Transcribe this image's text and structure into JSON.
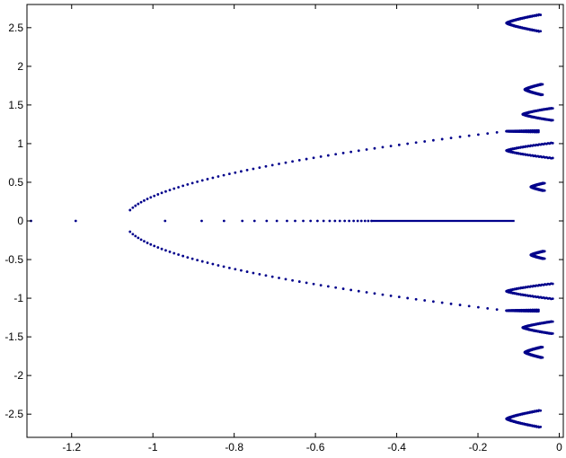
{
  "chart_data": {
    "type": "scatter",
    "title": "",
    "xlabel": "",
    "ylabel": "",
    "xlim": [
      -1.31,
      0.01
    ],
    "ylim": [
      -2.8,
      2.8
    ],
    "x_ticks": [
      {
        "value": -1.2,
        "label": "-1.2"
      },
      {
        "value": -1.0,
        "label": "-1"
      },
      {
        "value": -0.8,
        "label": "-0.8"
      },
      {
        "value": -0.6,
        "label": "-0.6"
      },
      {
        "value": -0.4,
        "label": "-0.4"
      },
      {
        "value": -0.2,
        "label": "-0.2"
      },
      {
        "value": 0,
        "label": "0"
      }
    ],
    "y_ticks": [
      {
        "value": 2.5,
        "label": "2.5"
      },
      {
        "value": 2.0,
        "label": "2"
      },
      {
        "value": 1.5,
        "label": "1.5"
      },
      {
        "value": 1.0,
        "label": "1"
      },
      {
        "value": 0.5,
        "label": "0.5"
      },
      {
        "value": 0,
        "label": "0"
      },
      {
        "value": -0.5,
        "label": "-0.5"
      },
      {
        "value": -1.0,
        "label": "-1"
      },
      {
        "value": -1.5,
        "label": "-1.5"
      },
      {
        "value": -2.0,
        "label": "-2"
      },
      {
        "value": -2.5,
        "label": "-2.5"
      }
    ],
    "grid": false,
    "marker_color": "#00008b",
    "series": [
      {
        "description_key": "real_axis_points",
        "points": [
          [
            -1.3,
            0
          ],
          [
            -1.19,
            0
          ],
          [
            -0.97,
            0
          ],
          [
            -0.88,
            0
          ],
          [
            -0.825,
            0
          ],
          [
            -0.78,
            0
          ],
          [
            -0.75,
            0
          ],
          [
            -0.72,
            0
          ],
          [
            -0.695,
            0
          ],
          [
            -0.67,
            0
          ],
          [
            -0.65,
            0
          ],
          [
            -0.63,
            0
          ],
          [
            -0.612,
            0
          ],
          [
            -0.595,
            0
          ],
          [
            -0.58,
            0
          ],
          [
            -0.565,
            0
          ],
          [
            -0.552,
            0
          ],
          [
            -0.54,
            0
          ],
          [
            -0.528,
            0
          ],
          [
            -0.517,
            0
          ],
          [
            -0.506,
            0
          ],
          [
            -0.496,
            0
          ],
          [
            -0.487,
            0
          ],
          [
            -0.478,
            0
          ],
          [
            -0.47,
            0
          ],
          [
            -0.462,
            0
          ]
        ],
        "segment": {
          "x_start": -0.46,
          "x_end": -0.11,
          "y": 0
        }
      },
      {
        "description_key": "parabola_branch",
        "vertex": [
          -1.07,
          0
        ],
        "upper_end": [
          -0.13,
          1.16
        ],
        "lower_end": [
          -0.13,
          -1.16
        ],
        "y_abs_samples": [
          0.14,
          1.16
        ]
      },
      {
        "description_key": "right_clusters",
        "clusters": [
          {
            "y_center": 2.56,
            "x_left": -0.13,
            "x_right": -0.05,
            "half_height": 0.11
          },
          {
            "y_center": 1.7,
            "x_left": -0.085,
            "x_right": -0.045,
            "half_height": 0.07
          },
          {
            "y_center": 1.38,
            "x_left": -0.09,
            "x_right": -0.02,
            "half_height": 0.08
          },
          {
            "y_center": 1.16,
            "x_left": -0.13,
            "x_right": -0.055,
            "half_height": 0.01
          },
          {
            "y_center": 0.91,
            "x_left": -0.13,
            "x_right": -0.02,
            "half_height": 0.1
          },
          {
            "y_center": 0.44,
            "x_left": -0.07,
            "x_right": -0.04,
            "half_height": 0.05
          },
          {
            "y_center": -0.44,
            "x_left": -0.07,
            "x_right": -0.04,
            "half_height": 0.05
          },
          {
            "y_center": -0.91,
            "x_left": -0.13,
            "x_right": -0.02,
            "half_height": 0.1
          },
          {
            "y_center": -1.16,
            "x_left": -0.13,
            "x_right": -0.055,
            "half_height": 0.01
          },
          {
            "y_center": -1.38,
            "x_left": -0.09,
            "x_right": -0.02,
            "half_height": 0.08
          },
          {
            "y_center": -1.7,
            "x_left": -0.085,
            "x_right": -0.045,
            "half_height": 0.07
          },
          {
            "y_center": -2.56,
            "x_left": -0.13,
            "x_right": -0.05,
            "half_height": 0.11
          }
        ]
      }
    ]
  }
}
